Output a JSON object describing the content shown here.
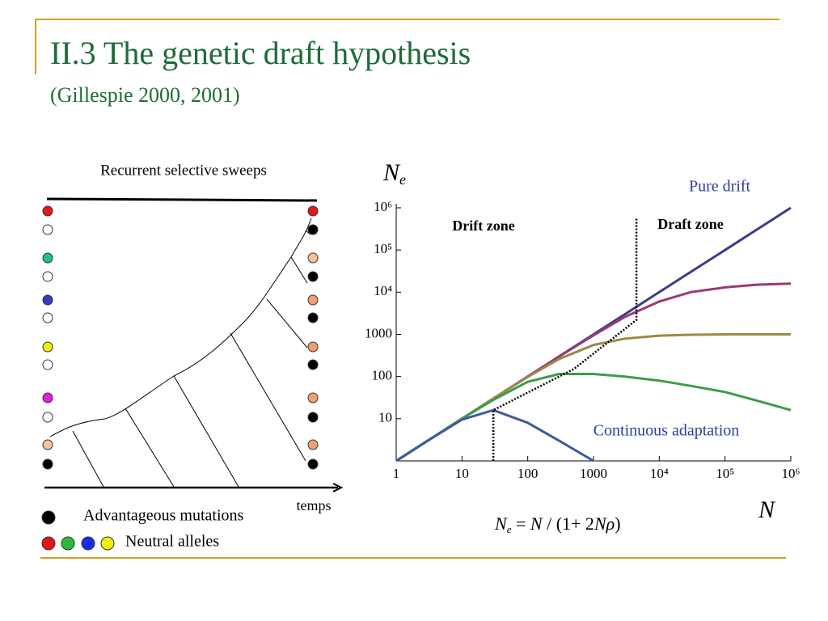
{
  "header": {
    "title": "II.3 The genetic draft hypothesis",
    "subtitle": "(Gillespie 2000, 2001)"
  },
  "diagram": {
    "title": "Recurrent selective sweeps",
    "axis_label": "temps",
    "legend": [
      "Advantageous mutations",
      "Neutral alleles"
    ]
  },
  "chart_data": {
    "type": "line",
    "log_x": true,
    "log_y": true,
    "ylabel": "N",
    "ylabel_sub": "e",
    "xlabel": "N",
    "formula": [
      "N",
      "e",
      " = ",
      "N",
      " / (1+ 2",
      "N",
      "ρ",
      ")"
    ],
    "annotations": [
      "Drift zone",
      "Draft zone",
      "Continuous adaptation"
    ],
    "xlim": [
      1,
      1000000
    ],
    "ylim": [
      1,
      1000000
    ],
    "xticks": [
      1,
      10,
      100,
      1000,
      {
        "value": 10000,
        "label": "10⁴"
      },
      {
        "value": 100000,
        "label": "10⁵"
      },
      {
        "value": 1000000,
        "label": "10⁶"
      }
    ],
    "yticks": [
      10,
      100,
      1000,
      {
        "value": 10000,
        "label": "10⁴"
      },
      {
        "value": 100000,
        "label": "10⁵"
      },
      {
        "value": 1000000,
        "label": "10⁶"
      }
    ],
    "x": [
      1,
      3,
      10,
      30,
      100,
      300,
      1000,
      3000,
      10000,
      30000,
      100000,
      300000,
      1000000
    ],
    "series": [
      {
        "name": "Pure drift",
        "color": "#3b3c8e",
        "values": [
          1,
          3,
          10,
          30,
          100,
          300,
          1000,
          3000,
          10000,
          30000,
          100000,
          300000,
          1000000
        ]
      },
      {
        "color": "#9a3b6f",
        "values": [
          1,
          3,
          10,
          30,
          100,
          299,
          950,
          2600,
          6000,
          10000,
          13000,
          15000,
          16000
        ]
      },
      {
        "color": "#9a8a45",
        "values": [
          1,
          3,
          10,
          30,
          98,
          260,
          560,
          790,
          930,
          980,
          1000,
          1000,
          1000
        ]
      },
      {
        "color": "#3f9a4f",
        "values": [
          1,
          3,
          10,
          28,
          75,
          115,
          115,
          100,
          80,
          60,
          43,
          27,
          16
        ]
      },
      {
        "color": "#3e5b9d",
        "values": [
          1,
          3,
          9.5,
          16,
          8,
          3,
          1,
          null,
          null,
          null,
          null,
          null,
          null
        ]
      }
    ],
    "boundary": {
      "color": "#000000",
      "x": [
        30,
        30,
        500,
        4500,
        4500
      ],
      "y": [
        1,
        16,
        150,
        2200,
        600000
      ]
    }
  }
}
